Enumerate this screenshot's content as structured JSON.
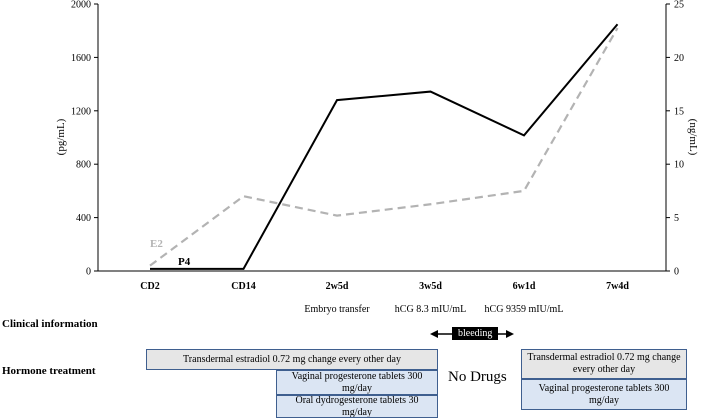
{
  "chart_data": {
    "type": "line",
    "categories": [
      "CD2",
      "CD14",
      "2w5d",
      "3w5d",
      "6w1d",
      "7w4d"
    ],
    "category_notes": [
      "",
      "",
      "Embryo transfer",
      "hCG 8.3 mIU/mL",
      "hCG 9359 mIU/mL",
      ""
    ],
    "left_axis": {
      "label": "(pg/mL)",
      "ticks": [
        0,
        400,
        800,
        1200,
        1600,
        2000
      ],
      "range": [
        0,
        2000
      ]
    },
    "right_axis": {
      "label": "(ng/mL)",
      "ticks": [
        0,
        5,
        10,
        15,
        20,
        25
      ],
      "range": [
        0,
        25
      ]
    },
    "series": [
      {
        "name": "E2",
        "axis": "left",
        "style": "dashed",
        "color": "#b3b3b3",
        "values": [
          40,
          560,
          415,
          500,
          600,
          1820
        ]
      },
      {
        "name": "P4",
        "axis": "right",
        "style": "solid",
        "color": "#000000",
        "values": [
          0.2,
          0.2,
          16,
          16.8,
          12.7,
          23.1
        ]
      }
    ],
    "grid": false
  },
  "clinical": {
    "title": "Clinical information",
    "bleeding_label": "bleeding"
  },
  "hormone": {
    "title": "Hormone treatment",
    "no_drugs": "No Drugs",
    "boxes": [
      {
        "text": "Transdermal estradiol 0.72 mg change every other day",
        "color": "gray"
      },
      {
        "text": "Vaginal progesterone tablets 300 mg/day",
        "color": "blue"
      },
      {
        "text": "Oral dydrogesterone tablets 30 mg/day",
        "color": "blue"
      },
      {
        "text": "Transdermal estradiol 0.72 mg change every other day",
        "color": "gray"
      },
      {
        "text": "Vaginal progesterone tablets 300 mg/day",
        "color": "blue"
      }
    ]
  }
}
